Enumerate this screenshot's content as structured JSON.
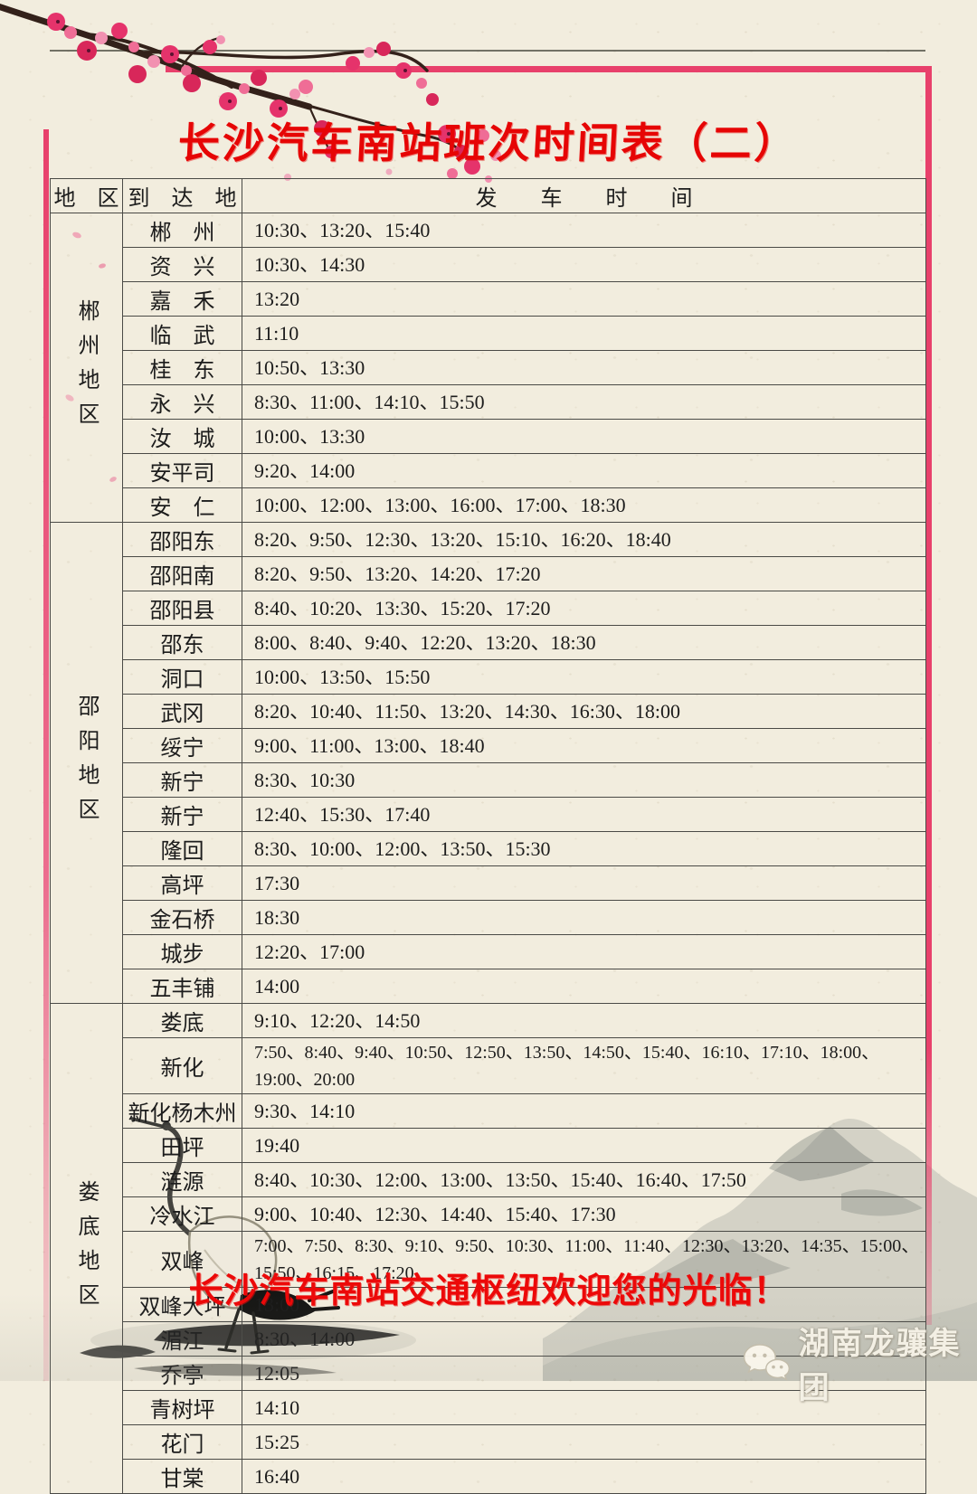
{
  "page": {
    "title": "长沙汽车南站班次时间表（二）",
    "footer_banner": "长沙汽车南站交通枢纽欢迎您的光临！",
    "brand": {
      "name": "湖南龙骧集团",
      "icon": "wechat-icon"
    }
  },
  "colors": {
    "paper": "#f2edde",
    "accent_pink": "#e8406b",
    "title_red": "#e60505",
    "banner_red": "#ec0909",
    "table_border": "#4a4a46"
  },
  "table": {
    "separator": "、",
    "headers": {
      "region": "地　区",
      "destination": "到　达　地",
      "times": "发　　车　　时　　间"
    },
    "sections": [
      {
        "region": "郴州地区",
        "rows": [
          {
            "destination": "郴　州",
            "times": [
              "10:30",
              "13:20",
              "15:40"
            ]
          },
          {
            "destination": "资　兴",
            "times": [
              "10:30",
              "14:30"
            ]
          },
          {
            "destination": "嘉　禾",
            "times": [
              "13:20"
            ]
          },
          {
            "destination": "临　武",
            "times": [
              "11:10"
            ]
          },
          {
            "destination": "桂　东",
            "times": [
              "10:50",
              "13:30"
            ]
          },
          {
            "destination": "永　兴",
            "times": [
              "8:30",
              "11:00",
              "14:10",
              "15:50"
            ]
          },
          {
            "destination": "汝　城",
            "times": [
              "10:00",
              "13:30"
            ]
          },
          {
            "destination": "安平司",
            "times": [
              "9:20",
              "14:00"
            ]
          },
          {
            "destination": "安　仁",
            "times": [
              "10:00",
              "12:00",
              "13:00",
              "16:00",
              "17:00",
              "18:30"
            ]
          }
        ]
      },
      {
        "region": "邵阳地区",
        "rows": [
          {
            "destination": "邵阳东",
            "times": [
              "8:20",
              "9:50",
              "12:30",
              "13:20",
              "15:10",
              "16:20",
              "18:40"
            ]
          },
          {
            "destination": "邵阳南",
            "times": [
              "8:20",
              "9:50",
              "13:20",
              "14:20",
              "17:20"
            ]
          },
          {
            "destination": "邵阳县",
            "times": [
              "8:40",
              "10:20",
              "13:30",
              "15:20",
              "17:20"
            ]
          },
          {
            "destination": "邵东",
            "times": [
              "8:00",
              "8:40",
              "9:40",
              "12:20",
              "13:20",
              "18:30"
            ]
          },
          {
            "destination": "洞口",
            "times": [
              "10:00",
              "13:50",
              "15:50"
            ]
          },
          {
            "destination": "武冈",
            "times": [
              "8:20",
              "10:40",
              "11:50",
              "13:20",
              "14:30",
              "16:30",
              "18:00"
            ]
          },
          {
            "destination": "绥宁",
            "times": [
              "9:00",
              "11:00",
              "13:00",
              "18:40"
            ]
          },
          {
            "destination": "新宁",
            "times": [
              "8:30",
              "10:30"
            ]
          },
          {
            "destination": "新宁",
            "times": [
              "12:40",
              "15:30",
              "17:40"
            ]
          },
          {
            "destination": "隆回",
            "times": [
              "8:30",
              "10:00",
              "12:00",
              "13:50",
              "15:30"
            ]
          },
          {
            "destination": "高坪",
            "times": [
              "17:30"
            ]
          },
          {
            "destination": "金石桥",
            "times": [
              "18:30"
            ]
          },
          {
            "destination": "城步",
            "times": [
              "12:20",
              "17:00"
            ]
          },
          {
            "destination": "五丰铺",
            "times": [
              "14:00"
            ]
          }
        ]
      },
      {
        "region": "娄底地区",
        "rows": [
          {
            "destination": "娄底",
            "times": [
              "9:10",
              "12:20",
              "14:50"
            ]
          },
          {
            "destination": "新化",
            "tall": true,
            "times": [
              "7:50",
              "8:40",
              "9:40",
              "10:50",
              "12:50",
              "13:50",
              "14:50",
              "15:40",
              "16:10",
              "17:10",
              "18:00",
              "19:00",
              "20:00"
            ]
          },
          {
            "destination": "新化杨木州",
            "times": [
              "9:30",
              "14:10"
            ]
          },
          {
            "destination": "田坪",
            "times": [
              "19:40"
            ]
          },
          {
            "destination": "涟源",
            "times": [
              "8:40",
              "10:30",
              "12:00",
              "13:00",
              "13:50",
              "15:40",
              "16:40",
              "17:50"
            ]
          },
          {
            "destination": "冷水江",
            "times": [
              "9:00",
              "10:40",
              "12:30",
              "14:40",
              "15:40",
              "17:30"
            ]
          },
          {
            "destination": "双峰",
            "tall": true,
            "times": [
              "7:00",
              "7:50",
              "8:30",
              "9:10",
              "9:50",
              "10:30",
              "11:00",
              "11:40",
              "12:30",
              "13:20",
              "14:35",
              "15:00",
              "15:50",
              "16:15",
              "17:20"
            ]
          },
          {
            "destination": "双峰大坪",
            "times": [
              "13:00"
            ]
          },
          {
            "destination": "湄江",
            "times": [
              "8:30",
              "14:00"
            ]
          },
          {
            "destination": "乔亭",
            "times": [
              "12:05"
            ]
          },
          {
            "destination": "青树坪",
            "times": [
              "14:10"
            ]
          },
          {
            "destination": "花门",
            "times": [
              "15:25"
            ]
          },
          {
            "destination": "甘棠",
            "times": [
              "16:40"
            ]
          }
        ]
      }
    ]
  }
}
